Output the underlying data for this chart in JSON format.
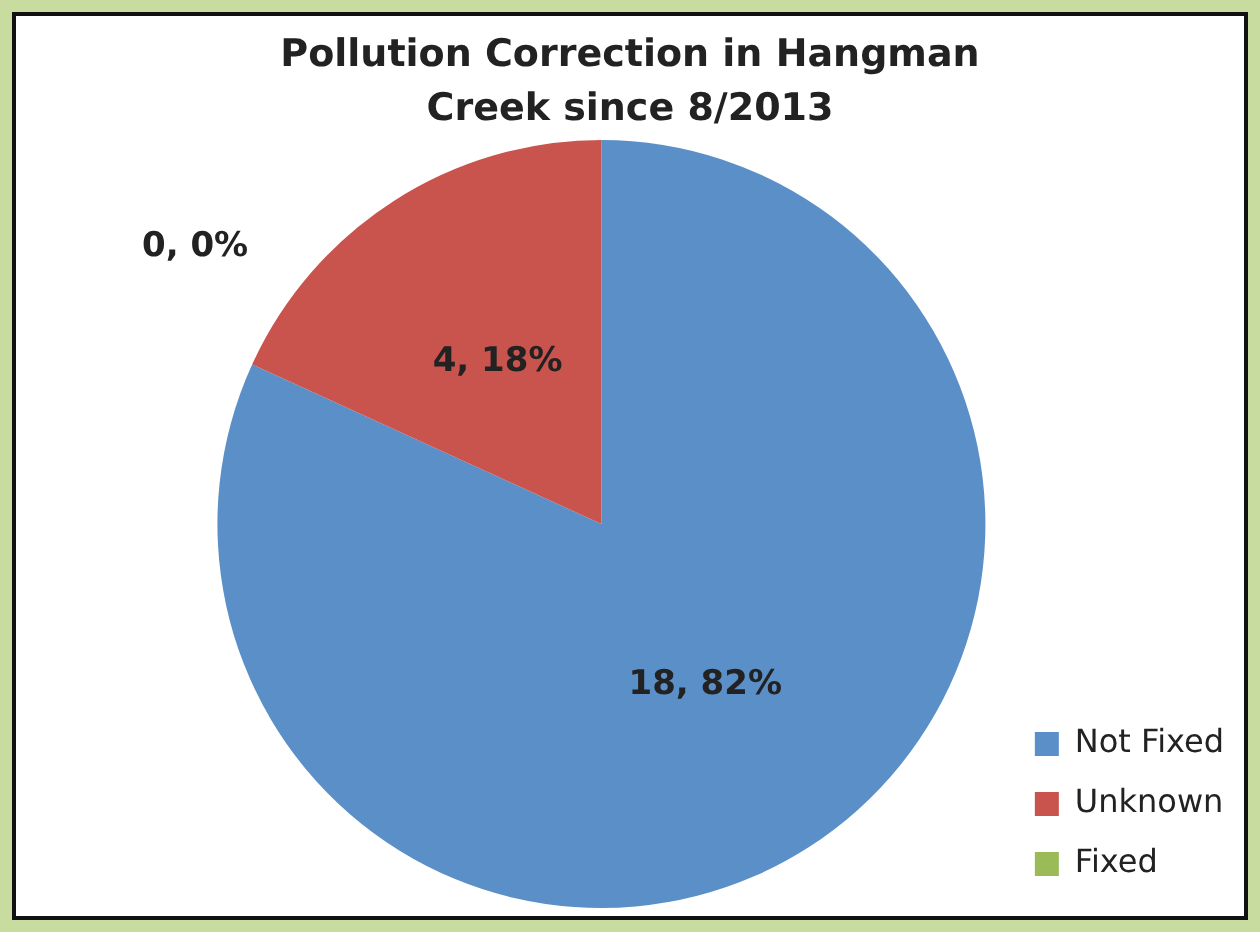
{
  "chart_data": {
    "type": "pie",
    "title": "Pollution Correction in Hangman Creek since 8/2013",
    "categories": [
      "Not Fixed",
      "Unknown",
      "Fixed"
    ],
    "values": [
      18,
      4,
      0
    ],
    "colors": [
      "#5b8fc7",
      "#c9534d",
      "#9bbb59"
    ],
    "value_labels": [
      "18, 82%",
      "4, 18%",
      "0, 0%"
    ],
    "legend": "right"
  }
}
